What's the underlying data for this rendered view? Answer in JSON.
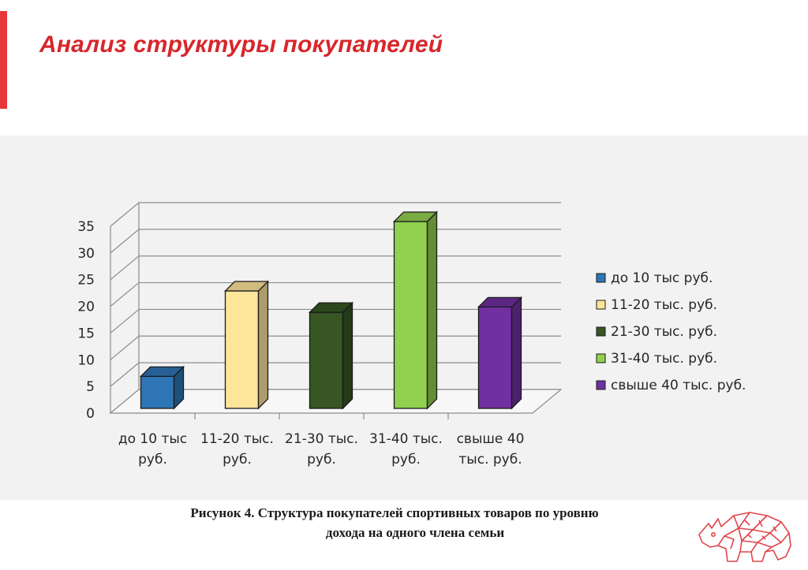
{
  "slide": {
    "title": "Анализ структуры покупателей",
    "accent_color": "#e8373a",
    "title_color": "#d7262b",
    "caption_line1": "Рисунок 4. Структура покупателей спортивных товаров по уровню",
    "caption_line2": "дохода на одного члена семьи",
    "logo_icon": "rhino-logo-icon"
  },
  "chart_data": {
    "type": "bar",
    "style": "3d-column",
    "categories": [
      [
        "до 10 тыс",
        "руб."
      ],
      [
        "11-20 тыс.",
        "руб."
      ],
      [
        "21-30 тыс.",
        "руб."
      ],
      [
        "31-40 тыс.",
        "руб."
      ],
      [
        "свыше 40",
        "тыс. руб."
      ]
    ],
    "values": [
      6,
      22,
      18,
      35,
      19
    ],
    "colors": [
      "#2e75b6",
      "#fde59a",
      "#375623",
      "#92d050",
      "#7030a0"
    ],
    "legend": [
      "до 10 тыс руб.",
      "11-20 тыс. руб.",
      "21-30 тыс. руб.",
      "31-40 тыс. руб.",
      "свыше 40 тыс. руб."
    ],
    "legend_position": "right",
    "ylim": [
      0,
      35
    ],
    "yticks": [
      0,
      5,
      10,
      15,
      20,
      25,
      30,
      35
    ],
    "grid": true
  }
}
